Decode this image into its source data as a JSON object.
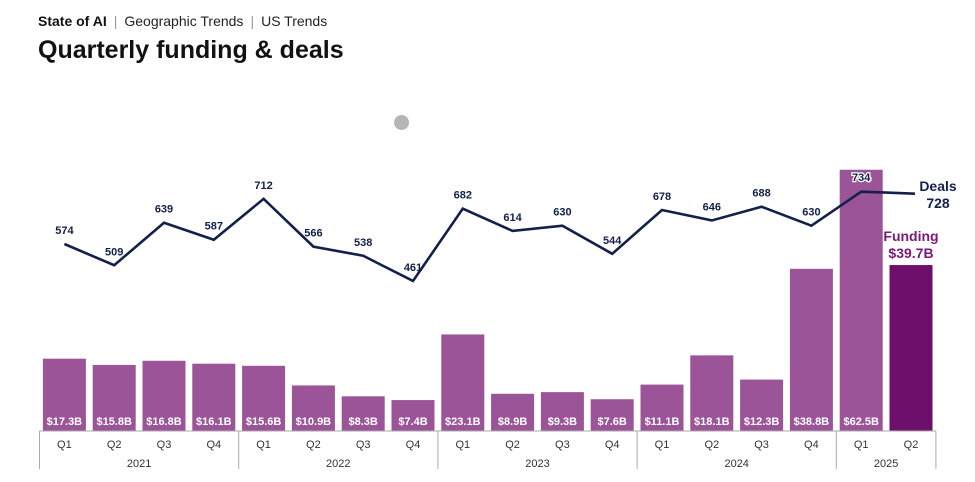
{
  "header": {
    "breadcrumbs": [
      "State of AI",
      "Geographic Trends",
      "US Trends"
    ],
    "title": "Quarterly funding & deals"
  },
  "colors": {
    "bar": "#9b5498",
    "bar_highlight": "#6e0f6c",
    "line": "#13214a",
    "funding_label": "#7a1a78",
    "axis": "#aaaaaa",
    "dot": "#b5b5b5"
  },
  "chart_data": {
    "type": "bar+line",
    "title": "Quarterly funding & deals",
    "years": [
      {
        "label": "2021",
        "quarters": [
          "Q1",
          "Q2",
          "Q3",
          "Q4"
        ]
      },
      {
        "label": "2022",
        "quarters": [
          "Q1",
          "Q2",
          "Q3",
          "Q4"
        ]
      },
      {
        "label": "2023",
        "quarters": [
          "Q1",
          "Q2",
          "Q3",
          "Q4"
        ]
      },
      {
        "label": "2024",
        "quarters": [
          "Q1",
          "Q2",
          "Q3",
          "Q4"
        ]
      },
      {
        "label": "2025",
        "quarters": [
          "Q1",
          "Q2"
        ]
      }
    ],
    "funding": {
      "name": "Funding",
      "unit": "$B",
      "values": [
        17.3,
        15.8,
        16.8,
        16.1,
        15.6,
        10.9,
        8.3,
        7.4,
        23.1,
        8.9,
        9.3,
        7.6,
        11.1,
        18.1,
        12.3,
        38.8,
        62.5,
        39.7
      ],
      "labels": [
        "$17.3B",
        "$15.8B",
        "$16.8B",
        "$16.1B",
        "$15.6B",
        "$10.9B",
        "$8.3B",
        "$7.4B",
        "$23.1B",
        "$8.9B",
        "$9.3B",
        "$7.6B",
        "$11.1B",
        "$18.1B",
        "$12.3B",
        "$38.8B",
        "$62.5B",
        "$39.7B"
      ]
    },
    "deals": {
      "name": "Deals",
      "values": [
        574,
        509,
        639,
        587,
        712,
        566,
        538,
        461,
        682,
        614,
        630,
        544,
        678,
        646,
        688,
        630,
        734,
        728
      ]
    },
    "legend": {
      "deals_title": "Deals",
      "deals_value": "728",
      "funding_title": "Funding",
      "funding_value": "$39.7B"
    },
    "grid": false
  }
}
